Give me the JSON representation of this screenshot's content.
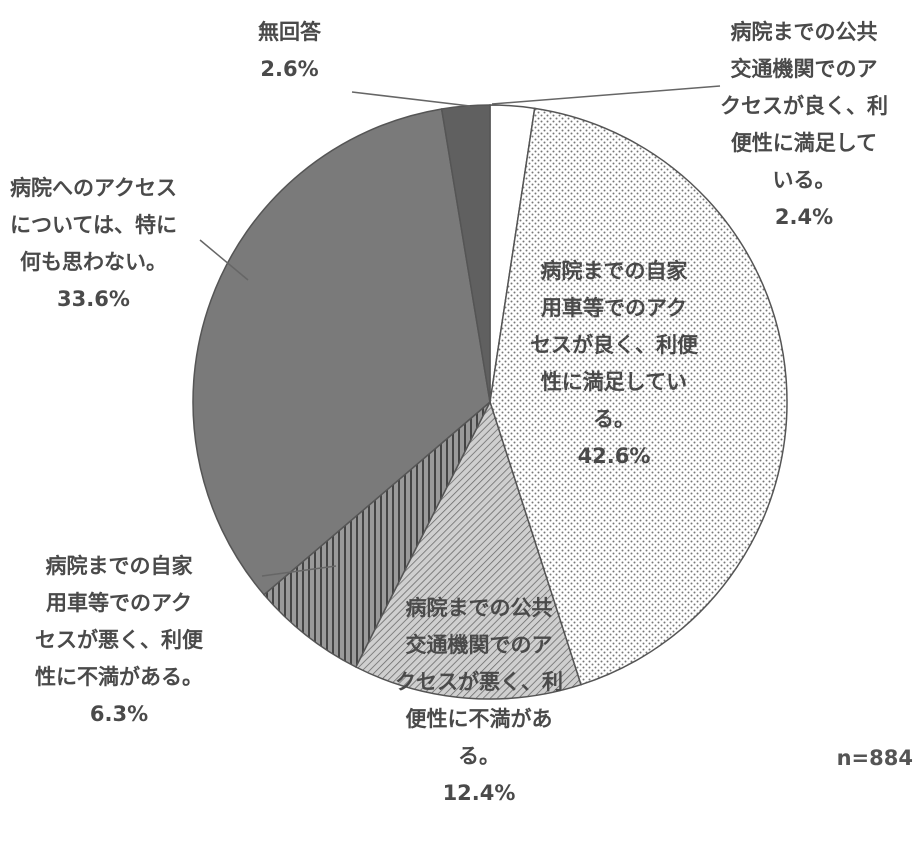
{
  "chart_data": {
    "type": "pie",
    "start": "top, clockwise",
    "slices": [
      {
        "label": [
          "病院までの公共",
          "交通機関でのア",
          "クセスが良く、利",
          "便性に満足して",
          "いる。"
        ],
        "value": 2.4,
        "pct_label": "2.4%",
        "color": "#ffffff"
      },
      {
        "label": [
          "病院までの自家",
          "用車等でのアク",
          "セスが良く、利便",
          "性に満足してい",
          "る。"
        ],
        "value": 42.6,
        "pct_label": "42.6%",
        "color": "#f2f2f2"
      },
      {
        "label": [
          "病院までの公共",
          "交通機関でのア",
          "クセスが悪く、利",
          "便性に不満があ",
          "る。"
        ],
        "value": 12.4,
        "pct_label": "12.4%",
        "color": "#b8b8b8"
      },
      {
        "label": [
          "病院までの自家",
          "用車等でのアク",
          "セスが悪く、利便",
          "性に不満がある。"
        ],
        "value": 6.3,
        "pct_label": "6.3%",
        "color": "#8a8a8a"
      },
      {
        "label": [
          "病院へのアクセス",
          "については、特に",
          "何も思わない。"
        ],
        "value": 33.6,
        "pct_label": "33.6%",
        "color": "#6b6b6b"
      },
      {
        "label": [
          "無回答"
        ],
        "value": 2.6,
        "pct_label": "2.6%",
        "color": "#5a5a5a"
      }
    ],
    "note": "n=884"
  }
}
